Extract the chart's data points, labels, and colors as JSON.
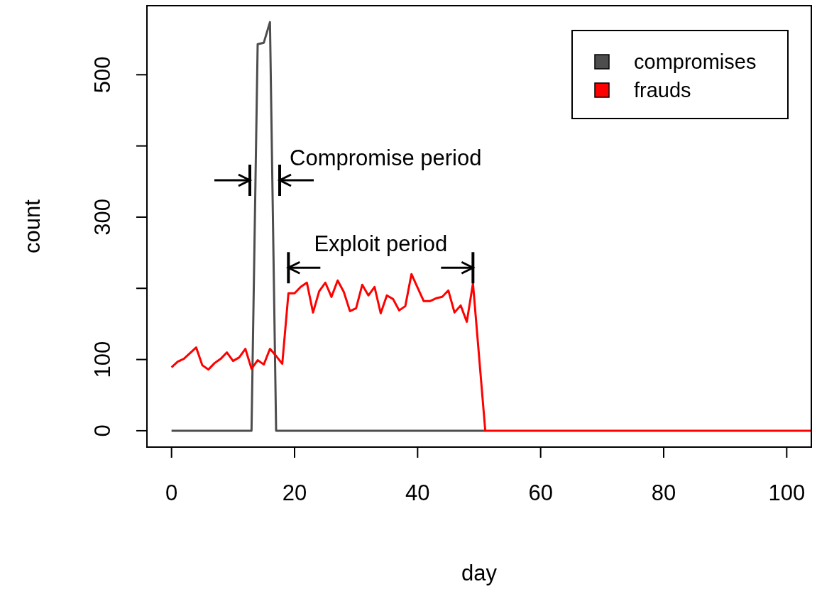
{
  "chart_data": {
    "type": "line",
    "xlabel": "day",
    "ylabel": "count",
    "xlim": [
      -4,
      104
    ],
    "xticks": [
      0,
      20,
      40,
      60,
      80,
      100
    ],
    "ylim": [
      -23,
      597
    ],
    "yticks": [
      0,
      100,
      {
        "value": 200,
        "label": null
      },
      300,
      {
        "value": 400,
        "label": null
      },
      500
    ],
    "grid": false,
    "legend": "top right",
    "line_style": "solid",
    "marker": "none",
    "series": [
      {
        "name": "compromises",
        "color": "#4d4d4d",
        "x": [
          0,
          13,
          14,
          15,
          16,
          17,
          51
        ],
        "values": [
          0,
          0,
          543,
          545,
          574,
          0,
          0
        ]
      },
      {
        "name": "frauds",
        "color": "#ff0000",
        "x": [
          0,
          1,
          2,
          3,
          4,
          5,
          6,
          7,
          8,
          9,
          10,
          11,
          12,
          13,
          14,
          15,
          16,
          17,
          18,
          19,
          20,
          21,
          22,
          23,
          24,
          25,
          26,
          27,
          28,
          29,
          30,
          31,
          32,
          33,
          34,
          35,
          36,
          37,
          38,
          39,
          40,
          41,
          42,
          43,
          44,
          45,
          46,
          47,
          48,
          49,
          51,
          104
        ],
        "values": [
          89,
          97,
          101,
          109,
          117,
          92,
          86,
          95,
          101,
          110,
          98,
          103,
          115,
          87,
          99,
          93,
          115,
          105,
          94,
          193,
          193,
          202,
          208,
          166,
          196,
          208,
          188,
          211,
          195,
          168,
          172,
          205,
          190,
          202,
          165,
          190,
          185,
          169,
          175,
          220,
          201,
          182,
          182,
          186,
          188,
          197,
          166,
          176,
          153,
          207,
          0,
          0
        ]
      }
    ],
    "annotations": [
      "Compromise period",
      {
        "text": "Exploit period",
        "x": 49,
        "y": 207
      }
    ]
  }
}
